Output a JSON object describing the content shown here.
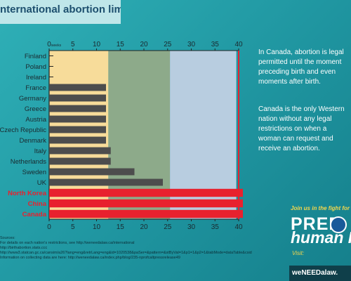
{
  "title": "nternational abortion limits",
  "note": {
    "para1": [
      "In Canada, abortion is legal",
      "permitted until the moment",
      "preceding birth and even",
      "moments after birth."
    ],
    "para2": [
      "Canada is the only Western",
      "nation without any legal",
      "restrictions on when a",
      "woman can request and",
      "receive an abortion."
    ]
  },
  "chart_data": {
    "type": "bar",
    "orientation": "horizontal",
    "title": "",
    "top_axis_unit": "weeks",
    "xlim": [
      0,
      40
    ],
    "xticks": [
      0,
      5,
      10,
      15,
      20,
      25,
      30,
      35,
      40
    ],
    "trimester_bands": [
      {
        "from": 0,
        "to": 12.5,
        "color": "#f7dc9a"
      },
      {
        "from": 12.5,
        "to": 25.5,
        "color": "#8daa8a"
      },
      {
        "from": 25.5,
        "to": 39.5,
        "color": "#b8cde0"
      }
    ],
    "categories": [
      "Finland",
      "Poland",
      "Ireland",
      "France",
      "Germany",
      "Greece",
      "Austria",
      "Czech Republic",
      "Denmark",
      "Italy",
      "Netherlands",
      "Sweden",
      "UK",
      "North Korea",
      "China",
      "Canada"
    ],
    "values": [
      0,
      0,
      0,
      12,
      12,
      12,
      12,
      12,
      12,
      13,
      13,
      18,
      24,
      40,
      40,
      40
    ],
    "highlighted": [
      "North Korea",
      "China",
      "Canada"
    ],
    "bar_color": "#4d4d4d",
    "highlight_color": "#e8212e"
  },
  "sources": [
    "Sources:",
    "For details on each nation's restrictions, see http://weneedalaw.ca/international",
    "http://birthabortion.stats.ccc",
    "http://www3.statcan.gc.ca/cansim/a26?lang=eng&retrLang=eng&id=1020538&paSer=&pattern=&stByVal=1&p1=1&p2=1&tabMode=dataTable&csid",
    "Information on collecting data are here: http://weneedalaw.ca/index.php/blog/235-nprofcaltpressrelease49"
  ],
  "promo": {
    "join": "Join us in the fight for",
    "brand_line1": "PREB",
    "brand_line2": "human RI",
    "visit": "Visit:",
    "site": "weNEEDalaw."
  }
}
